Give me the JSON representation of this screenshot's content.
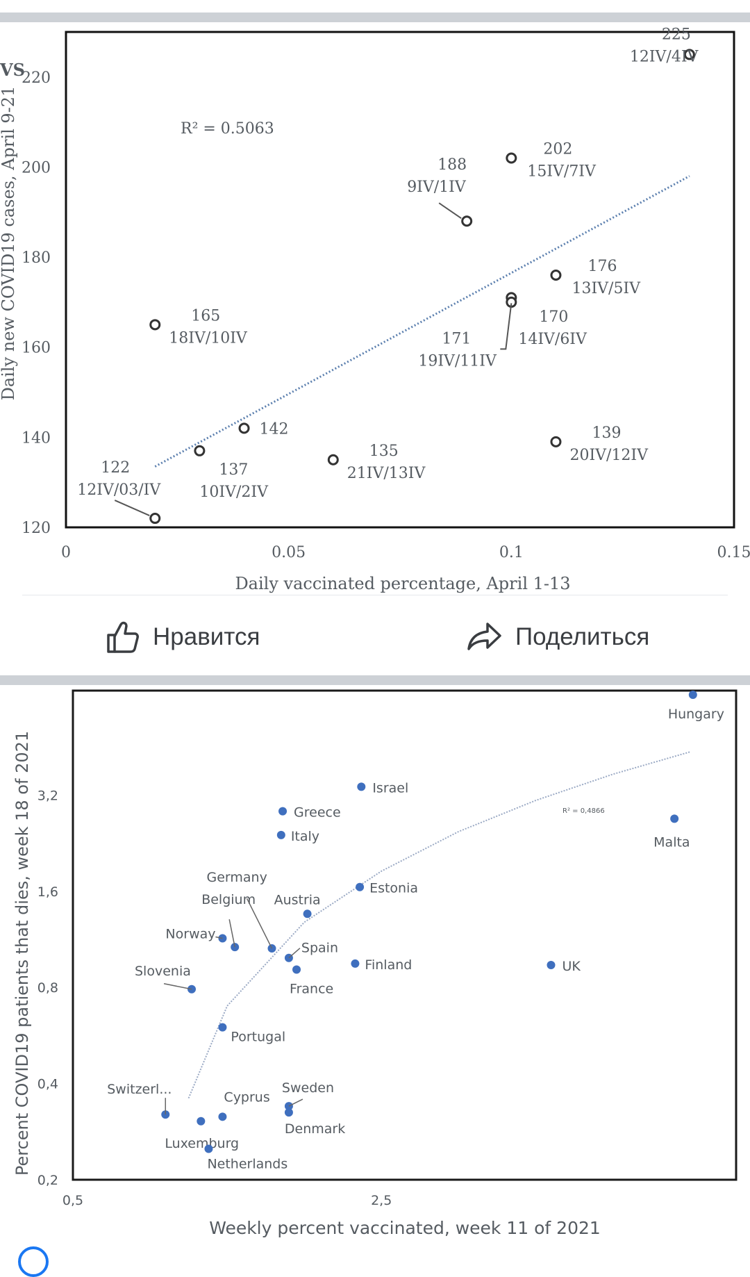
{
  "chart_data": [
    {
      "type": "scatter",
      "ylabel": "Daily new COVID19 cases, April 9-21",
      "ylabel_cut_text": "VS",
      "xlabel": "Daily vaccinated percentage, April 1-13",
      "xlim": [
        0,
        0.15
      ],
      "ylim": [
        120,
        230
      ],
      "xticks": [
        0,
        0.05,
        0.1,
        0.15
      ],
      "xtick_labels": [
        "0",
        "0.05",
        "0.1",
        "0.15"
      ],
      "yticks": [
        120,
        140,
        160,
        180,
        200,
        220
      ],
      "ytick_labels": [
        "120",
        "140",
        "160",
        "180",
        "200",
        "220"
      ],
      "r2_label": "R² = 0.5063",
      "trendline": {
        "x": [
          0.02,
          0.14
        ],
        "y": [
          133.5,
          198
        ]
      },
      "points": [
        {
          "x": 0.14,
          "y": 225,
          "value": "225",
          "dates": "12IV/4IV"
        },
        {
          "x": 0.1,
          "y": 202,
          "value": "202",
          "dates": "15IV/7IV"
        },
        {
          "x": 0.09,
          "y": 188,
          "value": "188",
          "dates": "9IV/1IV"
        },
        {
          "x": 0.11,
          "y": 176,
          "value": "176",
          "dates": "13IV/5IV"
        },
        {
          "x": 0.1,
          "y": 171,
          "value": "171",
          "dates": "19IV/11IV"
        },
        {
          "x": 0.1,
          "y": 170,
          "value": "170",
          "dates": "14IV/6IV"
        },
        {
          "x": 0.02,
          "y": 165,
          "value": "165",
          "dates": "18IV/10IV"
        },
        {
          "x": 0.04,
          "y": 142,
          "value": "142",
          "dates": ""
        },
        {
          "x": 0.11,
          "y": 139,
          "value": "139",
          "dates": "20IV/12IV"
        },
        {
          "x": 0.03,
          "y": 137,
          "value": "137",
          "dates": "10IV/2IV"
        },
        {
          "x": 0.06,
          "y": 135,
          "value": "135",
          "dates": "21IV/13IV"
        },
        {
          "x": 0.02,
          "y": 122,
          "value": "122",
          "dates": "12IV/03/IV"
        }
      ]
    },
    {
      "type": "scatter",
      "ylabel": "Percent COVID19 patients that dies, week 18 of 2021",
      "xlabel": "Weekly percent vaccinated, week 11 of 2021",
      "xlim": [
        0.5,
        4.8
      ],
      "ylim": [
        0.2,
        6.8
      ],
      "log_y": true,
      "xticks": [
        0.5,
        2.5
      ],
      "xtick_labels": [
        "0,5",
        "2,5"
      ],
      "yticks": [
        0.2,
        0.4,
        0.8,
        1.6,
        3.2
      ],
      "ytick_labels": [
        "0,2",
        "0,4",
        "0,8",
        "1,6",
        "3,2"
      ],
      "r2_label": "R² = 0,4866",
      "trendline": {
        "x": [
          1.25,
          1.5,
          2.0,
          2.5,
          3.0,
          3.5,
          4.0,
          4.5
        ],
        "y": [
          0.36,
          0.7,
          1.28,
          1.85,
          2.46,
          3.08,
          3.72,
          4.37
        ]
      },
      "points": [
        {
          "name": "Hungary",
          "x": 4.52,
          "y": 6.6
        },
        {
          "name": "Israel",
          "x": 2.37,
          "y": 3.4
        },
        {
          "name": "Greece",
          "x": 1.86,
          "y": 2.85
        },
        {
          "name": "Italy",
          "x": 1.85,
          "y": 2.4
        },
        {
          "name": "Malta",
          "x": 4.4,
          "y": 2.7
        },
        {
          "name": "Estonia",
          "x": 2.36,
          "y": 1.65
        },
        {
          "name": "Austria",
          "x": 2.02,
          "y": 1.36
        },
        {
          "name": "Norway",
          "x": 1.47,
          "y": 1.14
        },
        {
          "name": "Belgium",
          "x": 1.55,
          "y": 1.07
        },
        {
          "name": "Germany",
          "x": 1.79,
          "y": 1.06
        },
        {
          "name": "Spain",
          "x": 1.9,
          "y": 0.99
        },
        {
          "name": "France",
          "x": 1.95,
          "y": 0.91
        },
        {
          "name": "Finland",
          "x": 2.33,
          "y": 0.95
        },
        {
          "name": "UK",
          "x": 3.6,
          "y": 0.94
        },
        {
          "name": "Slovenia",
          "x": 1.27,
          "y": 0.79
        },
        {
          "name": "Portugal",
          "x": 1.47,
          "y": 0.6
        },
        {
          "name": "Sweden",
          "x": 1.9,
          "y": 0.34
        },
        {
          "name": "Denmark",
          "x": 1.9,
          "y": 0.325
        },
        {
          "name": "Cyprus",
          "x": 1.47,
          "y": 0.315
        },
        {
          "name": "Switzerl...",
          "x": 1.1,
          "y": 0.32
        },
        {
          "name": "Luxemburg",
          "x": 1.33,
          "y": 0.305
        },
        {
          "name": "Netherlands",
          "x": 1.38,
          "y": 0.25
        }
      ]
    }
  ],
  "actions": {
    "like_label": "Нравится",
    "share_label": "Поделиться"
  },
  "icons": {
    "like": "thumbs-up-icon",
    "share": "share-arrow-icon"
  },
  "colors": {
    "background": "#ffffff",
    "separator": "#cdd1d6",
    "chart1_marker": "#333333",
    "chart1_trend": "#5b7fae",
    "chart2_marker": "#3f6fbe",
    "chart2_trend": "#9aa9c4",
    "text": "#555b61",
    "action_text": "#3a3d41"
  }
}
